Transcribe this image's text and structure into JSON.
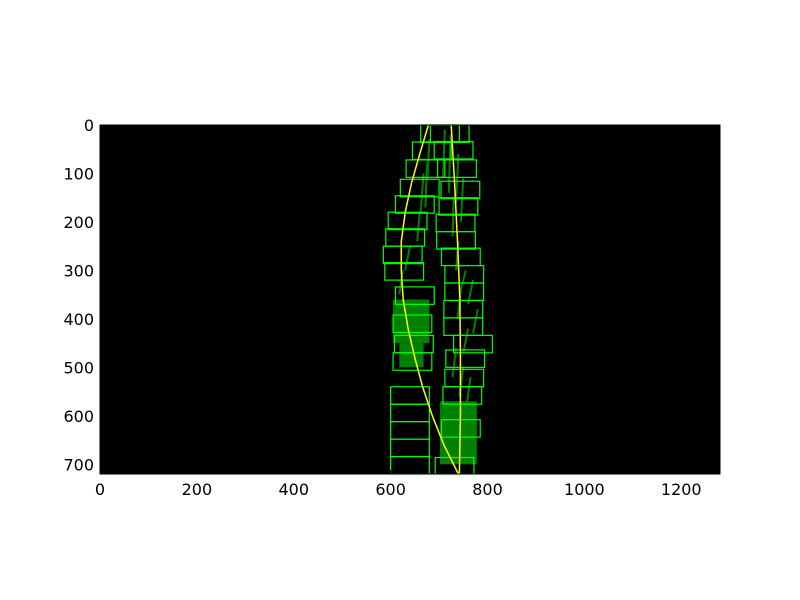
{
  "colors": {
    "figure_background": "#ffffff",
    "plot_background": "#000000",
    "lane_pixels": "#008000",
    "search_windows": "#00ff00",
    "fit_curves": "#ffff00"
  },
  "chart_data": {
    "type": "image",
    "xlim": [
      0,
      1280
    ],
    "ylim": [
      720,
      0
    ],
    "x_ticks": [
      0,
      200,
      400,
      600,
      800,
      1000,
      1200
    ],
    "y_ticks": [
      0,
      100,
      200,
      300,
      400,
      500,
      600,
      700
    ],
    "x_tick_labels": [
      "0",
      "200",
      "400",
      "600",
      "800",
      "1000",
      "1200"
    ],
    "y_tick_labels": [
      "0",
      "100",
      "200",
      "300",
      "400",
      "500",
      "600",
      "700"
    ],
    "grid": false,
    "window_height": 36,
    "left_windows": [
      {
        "x": 600,
        "y": 684,
        "w": 80
      },
      {
        "x": 600,
        "y": 648,
        "w": 80
      },
      {
        "x": 600,
        "y": 612,
        "w": 80
      },
      {
        "x": 600,
        "y": 576,
        "w": 80
      },
      {
        "x": 600,
        "y": 540,
        "w": 80
      },
      {
        "x": 605,
        "y": 470,
        "w": 80
      },
      {
        "x": 608,
        "y": 434,
        "w": 80
      },
      {
        "x": 605,
        "y": 392,
        "w": 80
      },
      {
        "x": 610,
        "y": 334,
        "w": 80
      },
      {
        "x": 588,
        "y": 284,
        "w": 80
      },
      {
        "x": 585,
        "y": 250,
        "w": 80
      },
      {
        "x": 590,
        "y": 214,
        "w": 80
      },
      {
        "x": 595,
        "y": 180,
        "w": 80
      },
      {
        "x": 610,
        "y": 146,
        "w": 80
      },
      {
        "x": 620,
        "y": 112,
        "w": 80
      },
      {
        "x": 632,
        "y": 72,
        "w": 80
      },
      {
        "x": 645,
        "y": 35,
        "w": 80
      },
      {
        "x": 662,
        "y": 0,
        "w": 80
      }
    ],
    "right_windows": [
      {
        "x": 692,
        "y": 686,
        "w": 80
      },
      {
        "x": 705,
        "y": 608,
        "w": 80
      },
      {
        "x": 708,
        "y": 540,
        "w": 80
      },
      {
        "x": 712,
        "y": 504,
        "w": 80
      },
      {
        "x": 714,
        "y": 464,
        "w": 80
      },
      {
        "x": 730,
        "y": 434,
        "w": 80
      },
      {
        "x": 710,
        "y": 398,
        "w": 80
      },
      {
        "x": 710,
        "y": 362,
        "w": 80
      },
      {
        "x": 712,
        "y": 326,
        "w": 80
      },
      {
        "x": 712,
        "y": 290,
        "w": 80
      },
      {
        "x": 705,
        "y": 254,
        "w": 80
      },
      {
        "x": 695,
        "y": 220,
        "w": 80
      },
      {
        "x": 694,
        "y": 184,
        "w": 80
      },
      {
        "x": 700,
        "y": 150,
        "w": 80
      },
      {
        "x": 704,
        "y": 116,
        "w": 80
      },
      {
        "x": 697,
        "y": 72,
        "w": 80
      },
      {
        "x": 690,
        "y": 34,
        "w": 80
      },
      {
        "x": 682,
        "y": 0,
        "w": 80
      }
    ],
    "left_fit": {
      "y": [
        0,
        60,
        120,
        180,
        240,
        300,
        360,
        420,
        480,
        540,
        600,
        660,
        720
      ],
      "x": [
        678,
        660,
        643,
        630,
        622,
        622,
        626,
        636,
        650,
        666,
        686,
        710,
        740
      ]
    },
    "right_fit": {
      "y": [
        0,
        120,
        240,
        360,
        480,
        600,
        720
      ],
      "x": [
        725,
        732,
        738,
        743,
        744,
        744,
        742
      ]
    },
    "left_pixel_blobs": [
      {
        "x1": 605,
        "x2": 680,
        "y1": 360,
        "y2": 450
      },
      {
        "x1": 618,
        "x2": 668,
        "y1": 450,
        "y2": 500
      }
    ],
    "right_pixel_blobs": [
      {
        "x1": 702,
        "x2": 778,
        "y1": 570,
        "y2": 700
      }
    ],
    "left_pixel_streaks": [
      {
        "x1": 668,
        "y1": 100,
        "x2": 662,
        "y2": 180
      },
      {
        "x1": 675,
        "y1": 80,
        "x2": 672,
        "y2": 170
      },
      {
        "x1": 680,
        "y1": 30,
        "x2": 676,
        "y2": 110
      },
      {
        "x1": 660,
        "y1": 180,
        "x2": 655,
        "y2": 240
      },
      {
        "x1": 640,
        "y1": 250,
        "x2": 630,
        "y2": 300
      },
      {
        "x1": 625,
        "y1": 300,
        "x2": 618,
        "y2": 350
      }
    ],
    "right_pixel_streaks": [
      {
        "x1": 712,
        "y1": 10,
        "x2": 708,
        "y2": 110
      },
      {
        "x1": 724,
        "y1": 20,
        "x2": 720,
        "y2": 140
      },
      {
        "x1": 740,
        "y1": 60,
        "x2": 735,
        "y2": 160
      },
      {
        "x1": 750,
        "y1": 110,
        "x2": 745,
        "y2": 200
      },
      {
        "x1": 730,
        "y1": 150,
        "x2": 728,
        "y2": 230
      },
      {
        "x1": 740,
        "y1": 240,
        "x2": 735,
        "y2": 300
      },
      {
        "x1": 755,
        "y1": 300,
        "x2": 745,
        "y2": 340
      },
      {
        "x1": 770,
        "y1": 320,
        "x2": 760,
        "y2": 370
      },
      {
        "x1": 745,
        "y1": 340,
        "x2": 738,
        "y2": 400
      },
      {
        "x1": 780,
        "y1": 380,
        "x2": 770,
        "y2": 430
      },
      {
        "x1": 760,
        "y1": 420,
        "x2": 750,
        "y2": 470
      },
      {
        "x1": 735,
        "y1": 460,
        "x2": 728,
        "y2": 520
      },
      {
        "x1": 750,
        "y1": 500,
        "x2": 742,
        "y2": 560
      },
      {
        "x1": 765,
        "y1": 520,
        "x2": 758,
        "y2": 570
      }
    ]
  }
}
